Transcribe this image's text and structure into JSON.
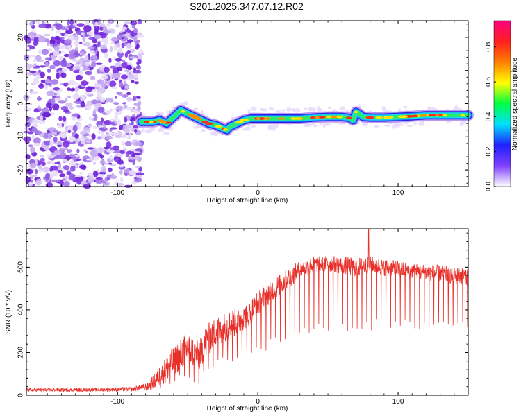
{
  "title": "S201.2025.347.07.12.R02",
  "colors": {
    "snr_line": "#e8302a",
    "frame": "#000000",
    "noise_purple": "#7a2fe0",
    "noise_light": "#d9c6f5"
  },
  "chart_data": [
    {
      "type": "heatmap",
      "name": "spectrogram",
      "xlabel": "Height of straight line (km)",
      "ylabel": "Frequency (Hz)",
      "xlim": [
        -165,
        150
      ],
      "ylim": [
        -25,
        25
      ],
      "xticks": [
        -100,
        0,
        100
      ],
      "xtick_labels": [
        "-100",
        "0",
        "100"
      ],
      "yticks": [
        -20,
        -10,
        0,
        10,
        20
      ],
      "ytick_labels": [
        "-20",
        "-10",
        "0",
        "10",
        "20"
      ],
      "noise_region_x": [
        -165,
        -81
      ],
      "ridge": {
        "x_start": -83,
        "x": [
          -83,
          -75,
          -70,
          -65,
          -60,
          -55,
          -50,
          -45,
          -40,
          -35,
          -30,
          -25,
          -22,
          -20,
          -15,
          -10,
          -5,
          0,
          10,
          20,
          30,
          40,
          50,
          60,
          65,
          68,
          70,
          72,
          75,
          80,
          90,
          100,
          110,
          120,
          130,
          140,
          150
        ],
        "freq": [
          -5.5,
          -5.5,
          -5,
          -6,
          -4,
          -2,
          -3,
          -4,
          -5,
          -6,
          -6.5,
          -7.5,
          -8,
          -7,
          -6,
          -5,
          -4.5,
          -4.5,
          -4.5,
          -4.5,
          -4.5,
          -4.2,
          -4.0,
          -4.0,
          -4.3,
          -5.0,
          -2.5,
          -3.0,
          -4.0,
          -4.2,
          -4.2,
          -4.0,
          -3.8,
          -3.5,
          -3.5,
          -3.5,
          -3.5
        ]
      },
      "colorbar": {
        "label": "Normalized spectral amplitude",
        "range": [
          0,
          0.95
        ],
        "ticks": [
          0.0,
          0.2,
          0.4,
          0.6,
          0.8
        ],
        "tick_labels": [
          "0.0",
          "0.2",
          "0.4",
          "0.6",
          "0.8"
        ],
        "colors": [
          "#ffffff",
          "#8040ff",
          "#2020ff",
          "#00e0ff",
          "#00ff40",
          "#ffff00",
          "#ff8000",
          "#ff2020",
          "#ff0080"
        ]
      }
    },
    {
      "type": "line",
      "name": "snr",
      "xlabel": "Height of straight line (km)",
      "ylabel": "SNR (10 * v/v)",
      "xlim": [
        -165,
        150
      ],
      "ylim": [
        0,
        780
      ],
      "xticks": [
        -100,
        0,
        100
      ],
      "xtick_labels": [
        "-100",
        "0",
        "100"
      ],
      "yticks": [
        0,
        200,
        400,
        600
      ],
      "ytick_labels": [
        "0",
        "200",
        "400",
        "600"
      ],
      "envelope": {
        "x": [
          -165,
          -120,
          -90,
          -78,
          -70,
          -60,
          -50,
          -42,
          -38,
          -30,
          -20,
          -10,
          0,
          10,
          20,
          30,
          40,
          50,
          60,
          70,
          80,
          90,
          100,
          110,
          120,
          130,
          140,
          150
        ],
        "mean": [
          25,
          25,
          28,
          40,
          90,
          160,
          220,
          180,
          240,
          300,
          330,
          360,
          430,
          490,
          540,
          590,
          610,
          615,
          610,
          600,
          610,
          600,
          590,
          580,
          575,
          570,
          560,
          560
        ],
        "amp": [
          8,
          8,
          10,
          20,
          50,
          70,
          80,
          70,
          80,
          70,
          70,
          60,
          60,
          50,
          50,
          40,
          40,
          40,
          40,
          45,
          40,
          40,
          40,
          40,
          40,
          40,
          40,
          40
        ],
        "dip_floor": [
          25,
          25,
          25,
          25,
          30,
          40,
          50,
          10,
          90,
          120,
          150,
          160,
          190,
          220,
          250,
          270,
          270,
          280,
          290,
          300,
          300,
          300,
          300,
          300,
          300,
          300,
          300,
          300
        ]
      },
      "peak": {
        "x": 79,
        "y": 780
      }
    }
  ]
}
